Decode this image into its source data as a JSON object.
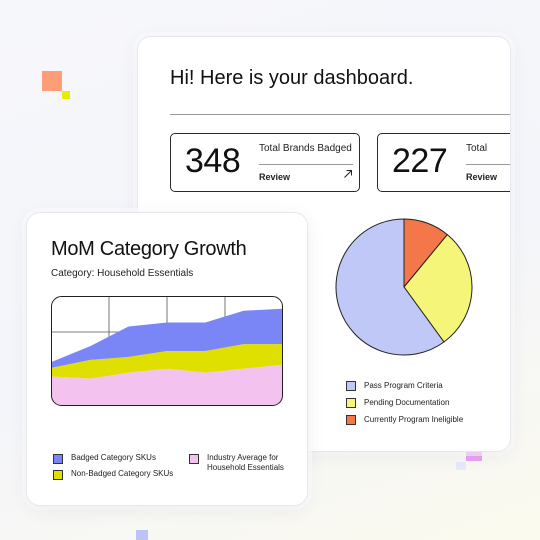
{
  "dashboard": {
    "greeting": "Hi! Here is your dashboard.",
    "stats": [
      {
        "value": "348",
        "label": "Total Brands Badged",
        "link": "Review"
      },
      {
        "value": "227",
        "label": "Total",
        "link": "Review"
      }
    ],
    "link_icon": "arrow-up-right-icon"
  },
  "pie_chart": {
    "type": "pie",
    "slices": [
      {
        "label": "Pass Program Criteria",
        "value": 60,
        "color": "#c0c8f8"
      },
      {
        "label": "Pending Documentation",
        "value": 29,
        "color": "#f5f57a"
      },
      {
        "label": "Currently Program Ineligible",
        "value": 11,
        "color": "#f4774a"
      }
    ]
  },
  "growth": {
    "title": "MoM Category Growth",
    "subtitle": "Category: Household Essentials",
    "legend": [
      {
        "label": "Badged Category SKUs",
        "color": "#7a86f5"
      },
      {
        "label": "Non-Badged Category SKUs",
        "color": "#e0e000"
      },
      {
        "label": "Industry Average for Household Essentials",
        "color": "#f3c2ee"
      }
    ]
  },
  "chart_data": [
    {
      "type": "pie",
      "categories": [
        "Pass Program Criteria",
        "Pending Documentation",
        "Currently Program Ineligible"
      ],
      "values": [
        60,
        29,
        11
      ],
      "title": "",
      "legend": "bottom"
    },
    {
      "type": "area",
      "title": "MoM Category Growth",
      "subtitle": "Category: Household Essentials",
      "x": [
        0,
        1,
        2,
        3,
        4,
        5,
        6
      ],
      "series": [
        {
          "name": "Industry Average for Household Essentials",
          "values": [
            29,
            27,
            33,
            37,
            33,
            37,
            41
          ]
        },
        {
          "name": "Non-Badged Category SKUs",
          "values": [
            9,
            19,
            16,
            18,
            22,
            25,
            21
          ]
        },
        {
          "name": "Badged Category SKUs",
          "values": [
            6,
            14,
            31,
            29,
            29,
            34,
            36
          ]
        }
      ],
      "stacked": true,
      "ylim": [
        0,
        110
      ],
      "grid": true,
      "legend": "bottom"
    }
  ]
}
